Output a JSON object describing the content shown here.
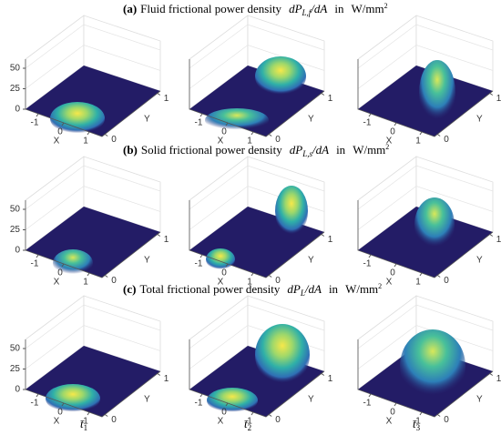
{
  "rows": [
    {
      "letter": "(a)",
      "title": "Fluid frictional power density",
      "symbol": "dP",
      "subscript": "L,f",
      "denominator": "/dA",
      "in": "in",
      "unit": "W/mm",
      "exponent": "2"
    },
    {
      "letter": "(b)",
      "title": "Solid frictional power density",
      "symbol": "dP",
      "subscript": "L,s",
      "denominator": "/dA",
      "in": "in",
      "unit": "W/mm",
      "exponent": "2"
    },
    {
      "letter": "(c)",
      "title": "Total frictional power density",
      "symbol": "dP",
      "subscript": "L",
      "denominator": "/dA",
      "in": "in",
      "unit": "W/mm",
      "exponent": "2"
    }
  ],
  "axes": {
    "z_ticks": [
      0,
      25,
      50
    ],
    "x_ticks": [
      -1,
      0,
      1
    ],
    "y_ticks": [
      0,
      1
    ],
    "x_label": "X",
    "y_label": "Y"
  },
  "columns": [
    {
      "symbol": "t̄",
      "subscript": "1"
    },
    {
      "symbol": "t̄",
      "subscript": "2"
    },
    {
      "symbol": "t̄",
      "subscript": "3"
    }
  ]
}
